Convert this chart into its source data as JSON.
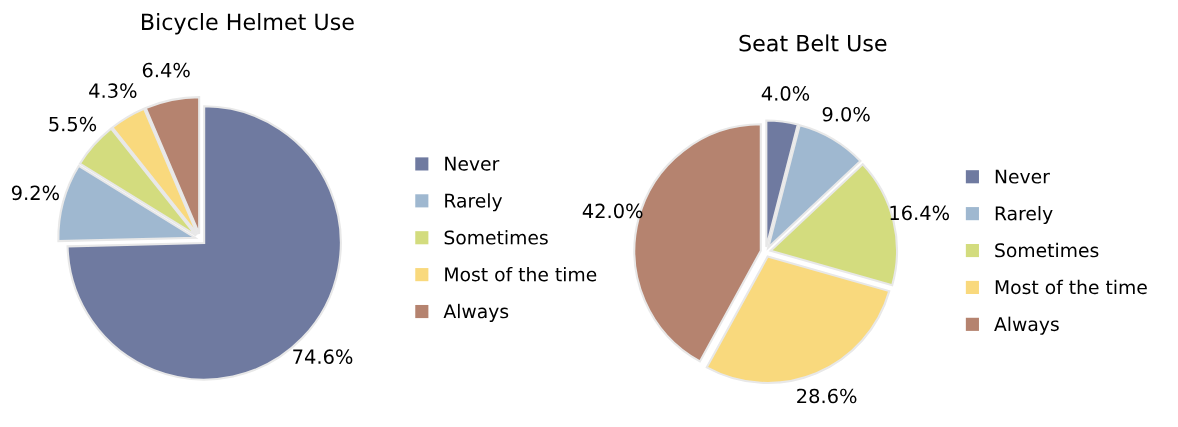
{
  "chart_data": [
    {
      "type": "pie",
      "title": "Bicycle Helmet Use",
      "categories": [
        "Never",
        "Rarely",
        "Sometimes",
        "Most of the time",
        "Always"
      ],
      "values": [
        74.6,
        9.2,
        5.5,
        4.3,
        6.4
      ],
      "value_labels": [
        "74.6%",
        "9.2%",
        "5.5%",
        "4.3%",
        "6.4%"
      ],
      "colors": [
        "#6f7aa0",
        "#9fb8d0",
        "#d3dc7e",
        "#f9d97d",
        "#b5836f"
      ],
      "legend": "right"
    },
    {
      "type": "pie",
      "title": "Seat Belt Use",
      "categories": [
        "Never",
        "Rarely",
        "Sometimes",
        "Most of the time",
        "Always"
      ],
      "values": [
        4.0,
        9.0,
        16.4,
        28.6,
        42.0
      ],
      "value_labels": [
        "4.0%",
        "9.0%",
        "16.4%",
        "28.6%",
        "42.0%"
      ],
      "colors": [
        "#6f7aa0",
        "#9fb8d0",
        "#d3dc7e",
        "#f9d97d",
        "#b5836f"
      ],
      "legend": "right"
    }
  ]
}
